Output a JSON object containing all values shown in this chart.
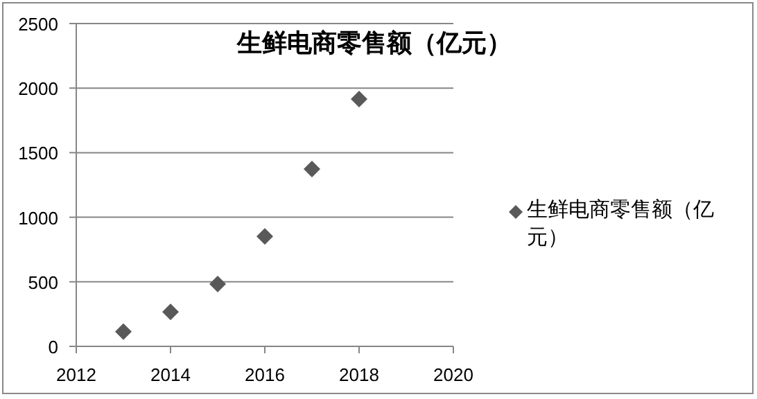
{
  "chart_data": {
    "type": "scatter",
    "title": "生鲜电商零售额（亿元）",
    "x": [
      2013,
      2014,
      2015,
      2016,
      2017,
      2018
    ],
    "series": [
      {
        "name": "生鲜电商零售额（亿元）",
        "color": "#595959",
        "values": [
          114,
          267,
          483,
          852,
          1373,
          1915
        ]
      }
    ],
    "xlim": [
      2012,
      2020
    ],
    "xticks": [
      2012,
      2014,
      2016,
      2018,
      2020
    ],
    "ylim": [
      0,
      2500
    ],
    "yticks": [
      0,
      500,
      1000,
      1500,
      2000,
      2500
    ],
    "grid": "y",
    "legend": "right",
    "marker": "diamond"
  }
}
